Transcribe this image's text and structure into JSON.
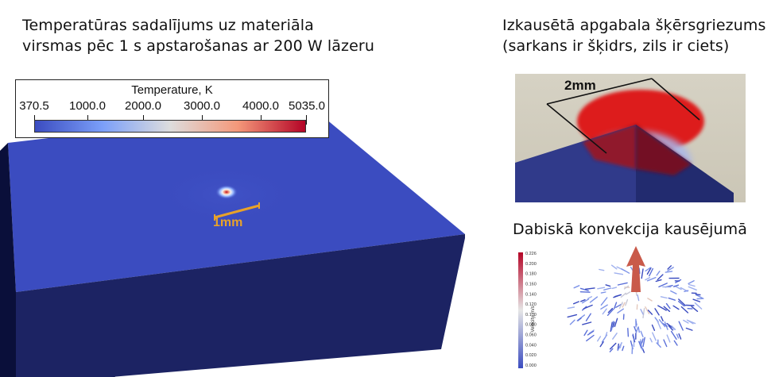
{
  "main_title": {
    "line1": "Temperatūras sadalījums uz materiāla",
    "line2": "virsmas pēc 1 s apstarošanas ar 200 W lāzeru"
  },
  "legend": {
    "title": "Temperature, K",
    "ticks": [
      "370.5",
      "1000.0",
      "2000.0",
      "3000.0",
      "4000.0",
      "5035.0"
    ],
    "colors": {
      "low": "#3b4cc0",
      "mid": "#dddddd",
      "high": "#b40426"
    }
  },
  "block_view": {
    "scale_label": "1mm",
    "scale_color": "#e8a22a"
  },
  "cross_section": {
    "title_line1": "Izkausētā apgabala šķērsgriezums",
    "title_line2": "(sarkans ir šķidrs, zils ir ciets)",
    "scale_label": "2mm"
  },
  "convection": {
    "title": "Dabiskā konvekcija kausējumā",
    "colorbar_label": "Velocity, m/s",
    "colorbar_ticks": [
      "0.226",
      "0.200",
      "0.180",
      "0.160",
      "0.140",
      "0.120",
      "0.100",
      "0.080",
      "0.060",
      "0.040",
      "0.020",
      "0.000"
    ]
  }
}
